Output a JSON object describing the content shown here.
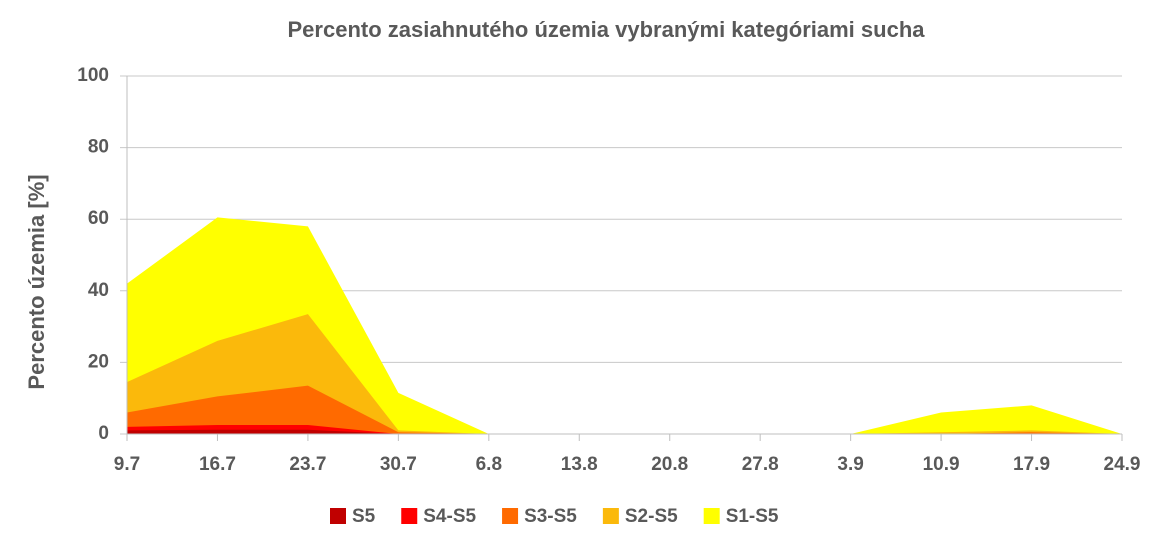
{
  "chart_data": {
    "type": "area",
    "title": "Percento zasiahnutého územia vybranými kategóriami sucha",
    "y_label": "Percento územia  [%]",
    "categories": [
      "9.7",
      "16.7",
      "23.7",
      "30.7",
      "6.8",
      "13.8",
      "20.8",
      "27.8",
      "3.9",
      "10.9",
      "17.9",
      "24.9"
    ],
    "series": [
      {
        "name": "S5",
        "color": "#c00000",
        "values": [
          1,
          1.2,
          1.2,
          0,
          0,
          0,
          0,
          0,
          0,
          0,
          0,
          0
        ]
      },
      {
        "name": "S4-S5",
        "color": "#ff0000",
        "values": [
          2,
          2.5,
          2.5,
          0,
          0,
          0,
          0,
          0,
          0,
          0,
          0,
          0
        ]
      },
      {
        "name": "S3-S5",
        "color": "#ff6a00",
        "values": [
          6,
          10.5,
          13.5,
          0.5,
          0,
          0,
          0,
          0,
          0,
          0,
          0.5,
          0
        ]
      },
      {
        "name": "S2-S5",
        "color": "#fbb90b",
        "values": [
          14.5,
          26,
          33.5,
          1,
          0,
          0,
          0,
          0,
          0,
          0.5,
          1,
          0
        ]
      },
      {
        "name": "S1-S5",
        "color": "#ffff00",
        "values": [
          42,
          60.5,
          58,
          11.5,
          0,
          0,
          0,
          0,
          0,
          6,
          8,
          0
        ]
      }
    ],
    "ylim": [
      0,
      100
    ],
    "yticks": [
      0,
      20,
      40,
      60,
      80,
      100
    ],
    "grid": true
  }
}
